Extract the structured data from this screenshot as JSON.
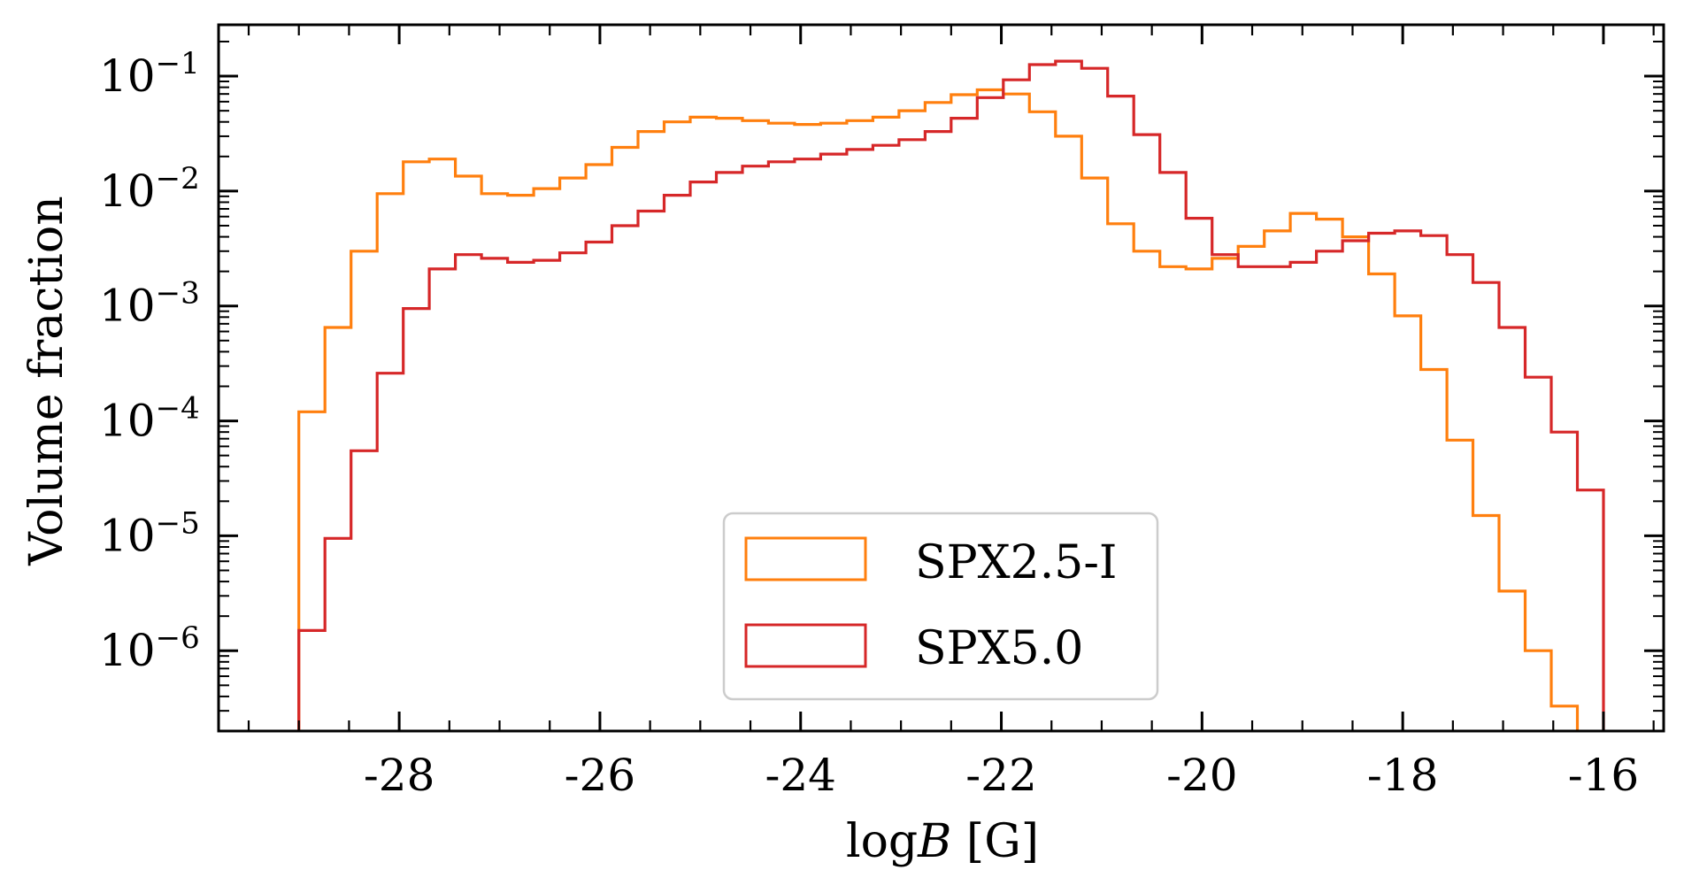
{
  "chart_data": {
    "type": "step-histogram",
    "xlabel": "logB [G]",
    "xlabel_parts": {
      "prefix": "log",
      "var": "B",
      "suffix": " [G]"
    },
    "ylabel": "Volume fraction",
    "xlim": [
      -29.8,
      -15.4
    ],
    "ylim": [
      2e-07,
      0.28
    ],
    "yscale": "log",
    "bin_width": 0.26,
    "x_ticks": [
      -28,
      -26,
      -24,
      -22,
      -20,
      -18,
      -16
    ],
    "x_tick_labels": [
      "-28",
      "-26",
      "-24",
      "-22",
      "-20",
      "-18",
      "-16"
    ],
    "y_ticks": [
      1e-06,
      1e-05,
      0.0001,
      0.001,
      0.01,
      0.1
    ],
    "y_tick_labels": [
      {
        "base": "10",
        "exp": "−6"
      },
      {
        "base": "10",
        "exp": "−5"
      },
      {
        "base": "10",
        "exp": "−4"
      },
      {
        "base": "10",
        "exp": "−3"
      },
      {
        "base": "10",
        "exp": "−2"
      },
      {
        "base": "10",
        "exp": "−1"
      }
    ],
    "legend_position": "lower-center",
    "series": [
      {
        "name": "SPX2.5-I",
        "color": "#ff7f0e",
        "edges": [
          -29.0,
          -28.74,
          -28.48,
          -28.22,
          -27.96,
          -27.7,
          -27.44,
          -27.18,
          -26.92,
          -26.66,
          -26.4,
          -26.14,
          -25.88,
          -25.62,
          -25.36,
          -25.1,
          -24.84,
          -24.58,
          -24.32,
          -24.06,
          -23.8,
          -23.54,
          -23.28,
          -23.02,
          -22.76,
          -22.5,
          -22.24,
          -21.98,
          -21.72,
          -21.46,
          -21.2,
          -20.94,
          -20.68,
          -20.42,
          -20.16,
          -19.9,
          -19.64,
          -19.38,
          -19.12,
          -18.86,
          -18.6,
          -18.34,
          -18.08,
          -17.82,
          -17.56,
          -17.3,
          -17.04,
          -16.78,
          -16.52,
          -16.26,
          -16.0
        ],
        "values": [
          0.00012,
          0.00065,
          0.003,
          0.0095,
          0.018,
          0.019,
          0.0135,
          0.0095,
          0.0092,
          0.0105,
          0.013,
          0.017,
          0.024,
          0.033,
          0.04,
          0.044,
          0.043,
          0.041,
          0.039,
          0.038,
          0.039,
          0.041,
          0.044,
          0.05,
          0.059,
          0.069,
          0.076,
          0.07,
          0.049,
          0.03,
          0.013,
          0.0052,
          0.003,
          0.0022,
          0.0021,
          0.0026,
          0.0033,
          0.0045,
          0.0064,
          0.0057,
          0.004,
          0.0019,
          0.00082,
          0.00028,
          6.8e-05,
          1.5e-05,
          3.3e-06,
          1e-06,
          3.3e-07,
          0
        ],
        "tail_x": -16.26
      },
      {
        "name": "SPX5.0",
        "color": "#d62728",
        "edges": [
          -29.0,
          -28.74,
          -28.48,
          -28.22,
          -27.96,
          -27.7,
          -27.44,
          -27.18,
          -26.92,
          -26.66,
          -26.4,
          -26.14,
          -25.88,
          -25.62,
          -25.36,
          -25.1,
          -24.84,
          -24.58,
          -24.32,
          -24.06,
          -23.8,
          -23.54,
          -23.28,
          -23.02,
          -22.76,
          -22.5,
          -22.24,
          -21.98,
          -21.72,
          -21.46,
          -21.2,
          -20.94,
          -20.68,
          -20.42,
          -20.16,
          -19.9,
          -19.64,
          -19.38,
          -19.12,
          -18.86,
          -18.6,
          -18.34,
          -18.08,
          -17.82,
          -17.56,
          -17.3,
          -17.04,
          -16.78,
          -16.52,
          -16.26,
          -16.0
        ],
        "values": [
          1.5e-06,
          9.5e-06,
          5.5e-05,
          0.00026,
          0.00095,
          0.0021,
          0.0028,
          0.0026,
          0.0024,
          0.0025,
          0.0029,
          0.0036,
          0.005,
          0.0067,
          0.0092,
          0.012,
          0.0145,
          0.0165,
          0.018,
          0.019,
          0.021,
          0.023,
          0.025,
          0.028,
          0.033,
          0.043,
          0.065,
          0.093,
          0.126,
          0.135,
          0.117,
          0.067,
          0.031,
          0.0145,
          0.0058,
          0.0028,
          0.0022,
          0.0022,
          0.0024,
          0.003,
          0.0037,
          0.0043,
          0.0045,
          0.0041,
          0.0028,
          0.0016,
          0.00065,
          0.00024,
          8e-05,
          2.5e-05
        ],
        "tail_x": -16.0
      }
    ]
  }
}
